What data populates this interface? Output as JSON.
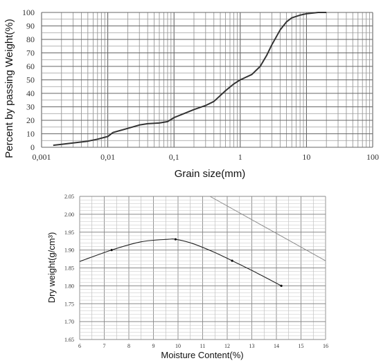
{
  "chart_data": [
    {
      "type": "line",
      "xscale": "log",
      "xlabel": "Grain size(mm)",
      "ylabel": "Percent by passing Weight(%)",
      "xlim": [
        0.001,
        100
      ],
      "ylim": [
        0,
        100
      ],
      "grid": true,
      "x_tick_labels": [
        "0,001",
        "0,01",
        "0,1",
        "1",
        "10",
        "100"
      ],
      "y_tick_labels": [
        "0",
        "10",
        "20",
        "30",
        "40",
        "50",
        "60",
        "70",
        "80",
        "90",
        "100"
      ],
      "series": [
        {
          "x": [
            0.0015,
            0.002,
            0.003,
            0.005,
            0.007,
            0.01,
            0.012,
            0.02,
            0.03,
            0.04,
            0.06,
            0.08,
            0.1,
            0.15,
            0.2,
            0.3,
            0.4,
            0.6,
            0.8,
            1.0,
            1.5,
            2.0,
            2.5,
            3.0,
            4.0,
            5.0,
            6.0,
            8.0,
            10.0,
            15.0,
            20.0
          ],
          "y": [
            1.5,
            2.2,
            3.2,
            4.5,
            6,
            8,
            11,
            14,
            16.5,
            17.5,
            18,
            19,
            22,
            25.5,
            28,
            31,
            34,
            42,
            47,
            50,
            54,
            60,
            68,
            76,
            87,
            93,
            96,
            98,
            99,
            100,
            100
          ]
        }
      ]
    },
    {
      "type": "line",
      "xlabel": "Moisture Content(%)",
      "ylabel": "Dry weight(g/cm³)",
      "xlim": [
        6,
        16
      ],
      "ylim": [
        1.65,
        2.05
      ],
      "grid": true,
      "x_tick_labels": [
        "6",
        "7",
        "8",
        "9",
        "10",
        "11",
        "12",
        "13",
        "14",
        "15",
        "16"
      ],
      "y_tick_labels": [
        "1.65",
        "1.70",
        "1.75",
        "1.80",
        "1.85",
        "1.90",
        "1.95",
        "2.00",
        "2.05"
      ],
      "series": [
        {
          "x": [
            6.0,
            7.3,
            8.5,
            9.6,
            9.9,
            10.6,
            11.5,
            12.2,
            13.2,
            14.2
          ],
          "y": [
            1.868,
            1.9,
            1.923,
            1.93,
            1.93,
            1.918,
            1.893,
            1.87,
            1.836,
            1.8
          ],
          "markers_at": [
            7.3,
            9.9,
            12.2,
            14.2
          ]
        },
        {
          "x": [
            11.3,
            16.0
          ],
          "y": [
            2.05,
            1.87
          ]
        }
      ]
    }
  ]
}
